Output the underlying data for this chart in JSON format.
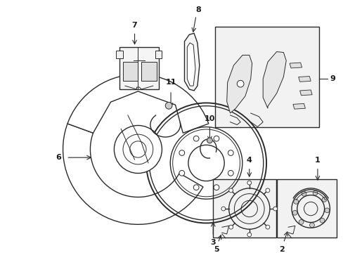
{
  "bg_color": "#ffffff",
  "line_color": "#2a2a2a",
  "label_color": "#1a1a1a",
  "fig_width": 4.89,
  "fig_height": 3.6,
  "dpi": 100
}
